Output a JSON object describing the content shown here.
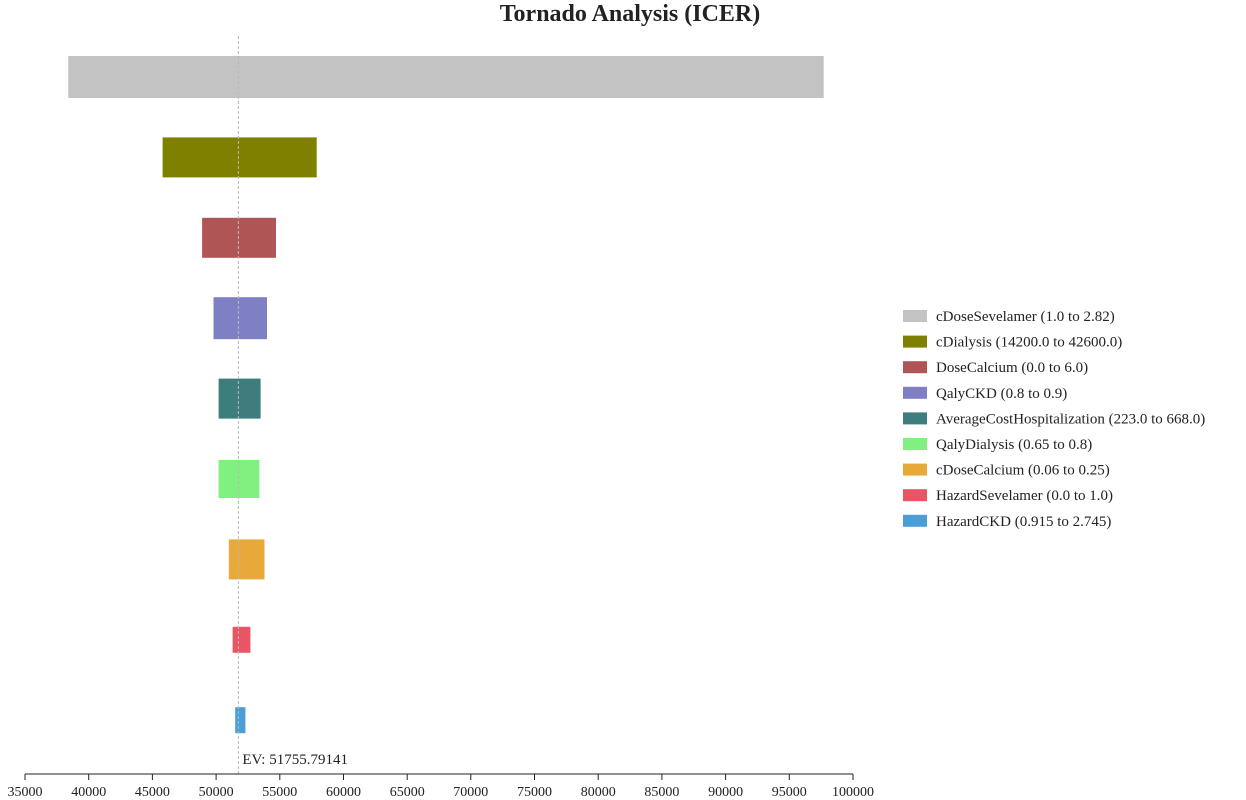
{
  "chart_data": {
    "type": "bar",
    "orientation": "horizontal",
    "title": "Tornado Analysis (ICER)",
    "xlabel": "",
    "ylabel": "",
    "xlim": [
      35000,
      100000
    ],
    "x_ticks": [
      35000,
      40000,
      45000,
      50000,
      55000,
      60000,
      65000,
      70000,
      75000,
      80000,
      85000,
      90000,
      95000,
      100000
    ],
    "grid": false,
    "legend_position": "right",
    "ev_value": 51755.79141,
    "ev_label": "EV: 51755.79141",
    "series": [
      {
        "name": "cDoseSevelamer (1.0 to 2.82)",
        "low": 38400,
        "high": 97700,
        "color": "#c3c3c3"
      },
      {
        "name": "cDialysis (14200.0 to 42600.0)",
        "low": 45800,
        "high": 57900,
        "color": "#808000"
      },
      {
        "name": "DoseCalcium (0.0 to 6.0)",
        "low": 48900,
        "high": 54700,
        "color": "#b05555"
      },
      {
        "name": "QalyCKD (0.8 to 0.9)",
        "low": 49800,
        "high": 54000,
        "color": "#7f7fc5"
      },
      {
        "name": "AverageCostHospitalization (223.0 to 668.0)",
        "low": 50200,
        "high": 53500,
        "color": "#3d7d7d"
      },
      {
        "name": "QalyDialysis (0.65 to 0.8)",
        "low": 50200,
        "high": 53400,
        "color": "#80f080"
      },
      {
        "name": "cDoseCalcium (0.06 to 0.25)",
        "low": 51000,
        "high": 53800,
        "color": "#e6a93a"
      },
      {
        "name": "HazardSevelamer (0.0 to 1.0)",
        "low": 51300,
        "high": 52700,
        "color": "#ea5566"
      },
      {
        "name": "HazardCKD (0.915 to 2.745)",
        "low": 51500,
        "high": 52300,
        "color": "#4a9fd6"
      }
    ]
  }
}
